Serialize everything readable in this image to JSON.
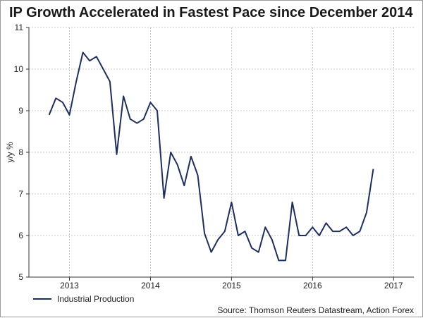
{
  "chart_data": {
    "type": "line",
    "title": "IP Growth Accelerated in Fastest Pace since December 2014",
    "xlabel": "",
    "ylabel": "y/y %",
    "ylim": [
      5,
      11
    ],
    "yticks": [
      5,
      6,
      7,
      8,
      9,
      10,
      11
    ],
    "x_start": "2012-10",
    "x_range": [
      "2012-07",
      "2017-04"
    ],
    "xtick_labels": [
      {
        "label": "2013",
        "at": "2013-01"
      },
      {
        "label": "2014",
        "at": "2014-01"
      },
      {
        "label": "2015",
        "at": "2015-01"
      },
      {
        "label": "2016",
        "at": "2016-01"
      },
      {
        "label": "2017",
        "at": "2017-01"
      }
    ],
    "grid": true,
    "legend_position": "bottom-left",
    "series": [
      {
        "name": "Industrial Production",
        "color": "#1f2f5c",
        "values": [
          8.9,
          9.3,
          9.2,
          8.9,
          9.7,
          10.4,
          10.2,
          10.3,
          10.0,
          9.7,
          7.95,
          9.35,
          8.8,
          8.7,
          8.8,
          9.2,
          9.0,
          6.9,
          8.0,
          7.7,
          7.2,
          7.9,
          7.45,
          6.05,
          5.6,
          5.9,
          6.1,
          6.8,
          6.0,
          6.1,
          5.7,
          5.6,
          6.2,
          5.9,
          5.4,
          5.4,
          6.8,
          6.0,
          6.0,
          6.2,
          6.0,
          6.3,
          6.1,
          6.1,
          6.2,
          6.0,
          6.1,
          6.55,
          7.6
        ]
      }
    ],
    "source": "Source: Thomson Reuters Datastream, Action Forex"
  }
}
